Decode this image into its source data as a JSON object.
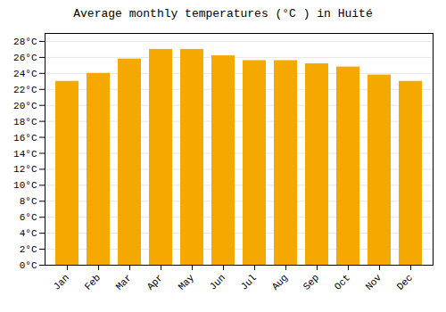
{
  "chart_data": {
    "type": "bar",
    "title": "Average monthly temperatures (°C ) in Huité",
    "categories": [
      "Jan",
      "Feb",
      "Mar",
      "Apr",
      "May",
      "Jun",
      "Jul",
      "Aug",
      "Sep",
      "Oct",
      "Nov",
      "Dec"
    ],
    "values": [
      23.0,
      24.0,
      25.8,
      27.0,
      27.0,
      26.2,
      25.6,
      25.6,
      25.2,
      24.8,
      23.8,
      23.0
    ],
    "color": "#F5A800",
    "ylim": [
      0,
      29
    ],
    "yticks": [
      {
        "value": 0,
        "label": "0°C"
      },
      {
        "value": 2,
        "label": "2°C"
      },
      {
        "value": 4,
        "label": "4°C"
      },
      {
        "value": 6,
        "label": "6°C"
      },
      {
        "value": 8,
        "label": "8°C"
      },
      {
        "value": 10,
        "label": "10°C"
      },
      {
        "value": 12,
        "label": "12°C"
      },
      {
        "value": 14,
        "label": "14°C"
      },
      {
        "value": 16,
        "label": "16°C"
      },
      {
        "value": 18,
        "label": "18°C"
      },
      {
        "value": 20,
        "label": "20°C"
      },
      {
        "value": 22,
        "label": "22°C"
      },
      {
        "value": 24,
        "label": "24°C"
      },
      {
        "value": 26,
        "label": "26°C"
      },
      {
        "value": 28,
        "label": "28°C"
      }
    ],
    "grid": true
  }
}
